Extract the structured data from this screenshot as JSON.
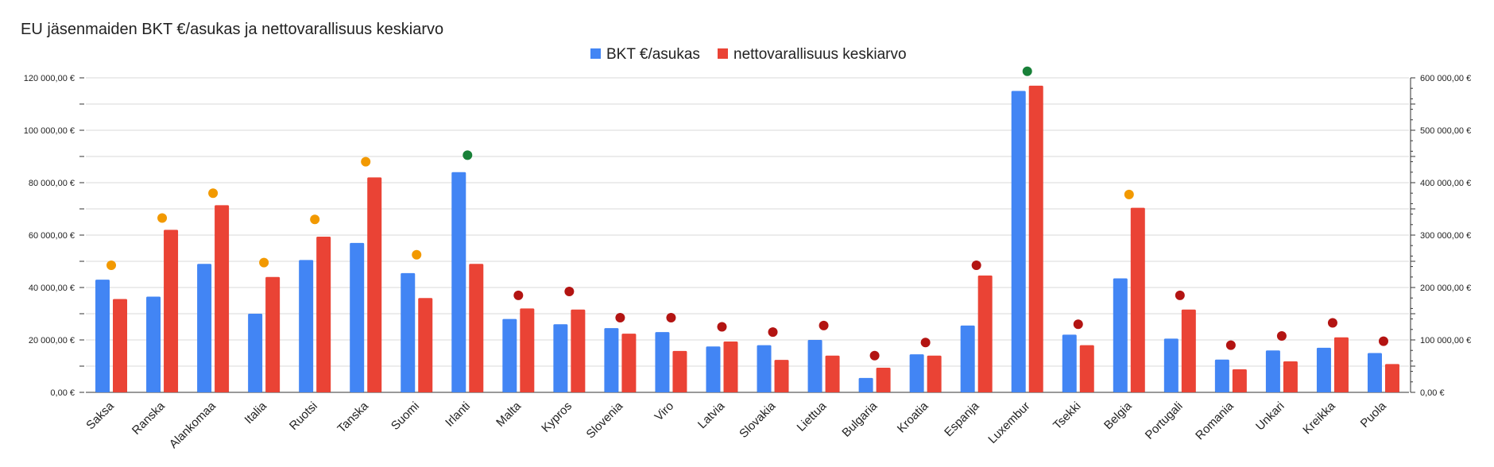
{
  "chart_data": {
    "type": "bar",
    "title": "EU jäsenmaiden BKT €/asukas ja nettovarallisuus keskiarvo",
    "categories": [
      "Saksa",
      "Ranska",
      "Alankomaa",
      "Italia",
      "Ruotsi",
      "Tanska",
      "Suomi",
      "Irlanti",
      "Malta",
      "Kypros",
      "Slovenia",
      "Viro",
      "Latvia",
      "Slovakia",
      "Liettua",
      "Bulgaria",
      "Kroatia",
      "Espanja",
      "Luxembur",
      "Tsekki",
      "Belgia",
      "Portugali",
      "Romania",
      "Unkari",
      "Kreikka",
      "Puola"
    ],
    "series": [
      {
        "name": "BKT €/asukas",
        "axis": "left",
        "color": "#4285f4",
        "values": [
          43000,
          36500,
          49000,
          30000,
          50500,
          57000,
          45500,
          84000,
          28000,
          26000,
          24500,
          23000,
          17500,
          18000,
          20000,
          5500,
          14500,
          25500,
          115000,
          22000,
          43500,
          20500,
          12500,
          16000,
          17000,
          15000
        ]
      },
      {
        "name": "nettovarallisuus keskiarvo",
        "axis": "right",
        "color": "#ea4335",
        "values": [
          178000,
          310000,
          357000,
          220000,
          297000,
          410000,
          180000,
          245000,
          160000,
          158000,
          112000,
          79000,
          97000,
          62000,
          70000,
          47000,
          70000,
          223000,
          585000,
          90000,
          352000,
          158000,
          44000,
          59000,
          105000,
          54000
        ]
      }
    ],
    "markers": {
      "axis": "left",
      "values": [
        48500,
        66500,
        76000,
        49500,
        66000,
        88000,
        52500,
        90500,
        37000,
        38500,
        28500,
        28500,
        25000,
        23000,
        25500,
        14000,
        19000,
        48500,
        122500,
        26000,
        75500,
        37000,
        18000,
        21500,
        26500,
        19500
      ],
      "colors": [
        "#f29900",
        "#f29900",
        "#f29900",
        "#f29900",
        "#f29900",
        "#f29900",
        "#f29900",
        "#188038",
        "#b31412",
        "#b31412",
        "#b31412",
        "#b31412",
        "#b31412",
        "#b31412",
        "#b31412",
        "#b31412",
        "#b31412",
        "#b31412",
        "#188038",
        "#b31412",
        "#f29900",
        "#b31412",
        "#b31412",
        "#b31412",
        "#b31412",
        "#b31412"
      ]
    },
    "y_left": {
      "min": 0,
      "max": 120000,
      "ticks": [
        "0,00 €",
        "20 000,00 €",
        "40 000,00 €",
        "60 000,00 €",
        "80 000,00 €",
        "100 000,00 €",
        "120 000,00 €"
      ]
    },
    "y_right": {
      "min": 0,
      "max": 600000,
      "ticks": [
        "0,00 €",
        "100 000,00 €",
        "200 000,00 €",
        "300 000,00 €",
        "400 000,00 €",
        "500 000,00 €",
        "600 000,00 €"
      ]
    },
    "grid": true,
    "legend_position": "top-center"
  }
}
